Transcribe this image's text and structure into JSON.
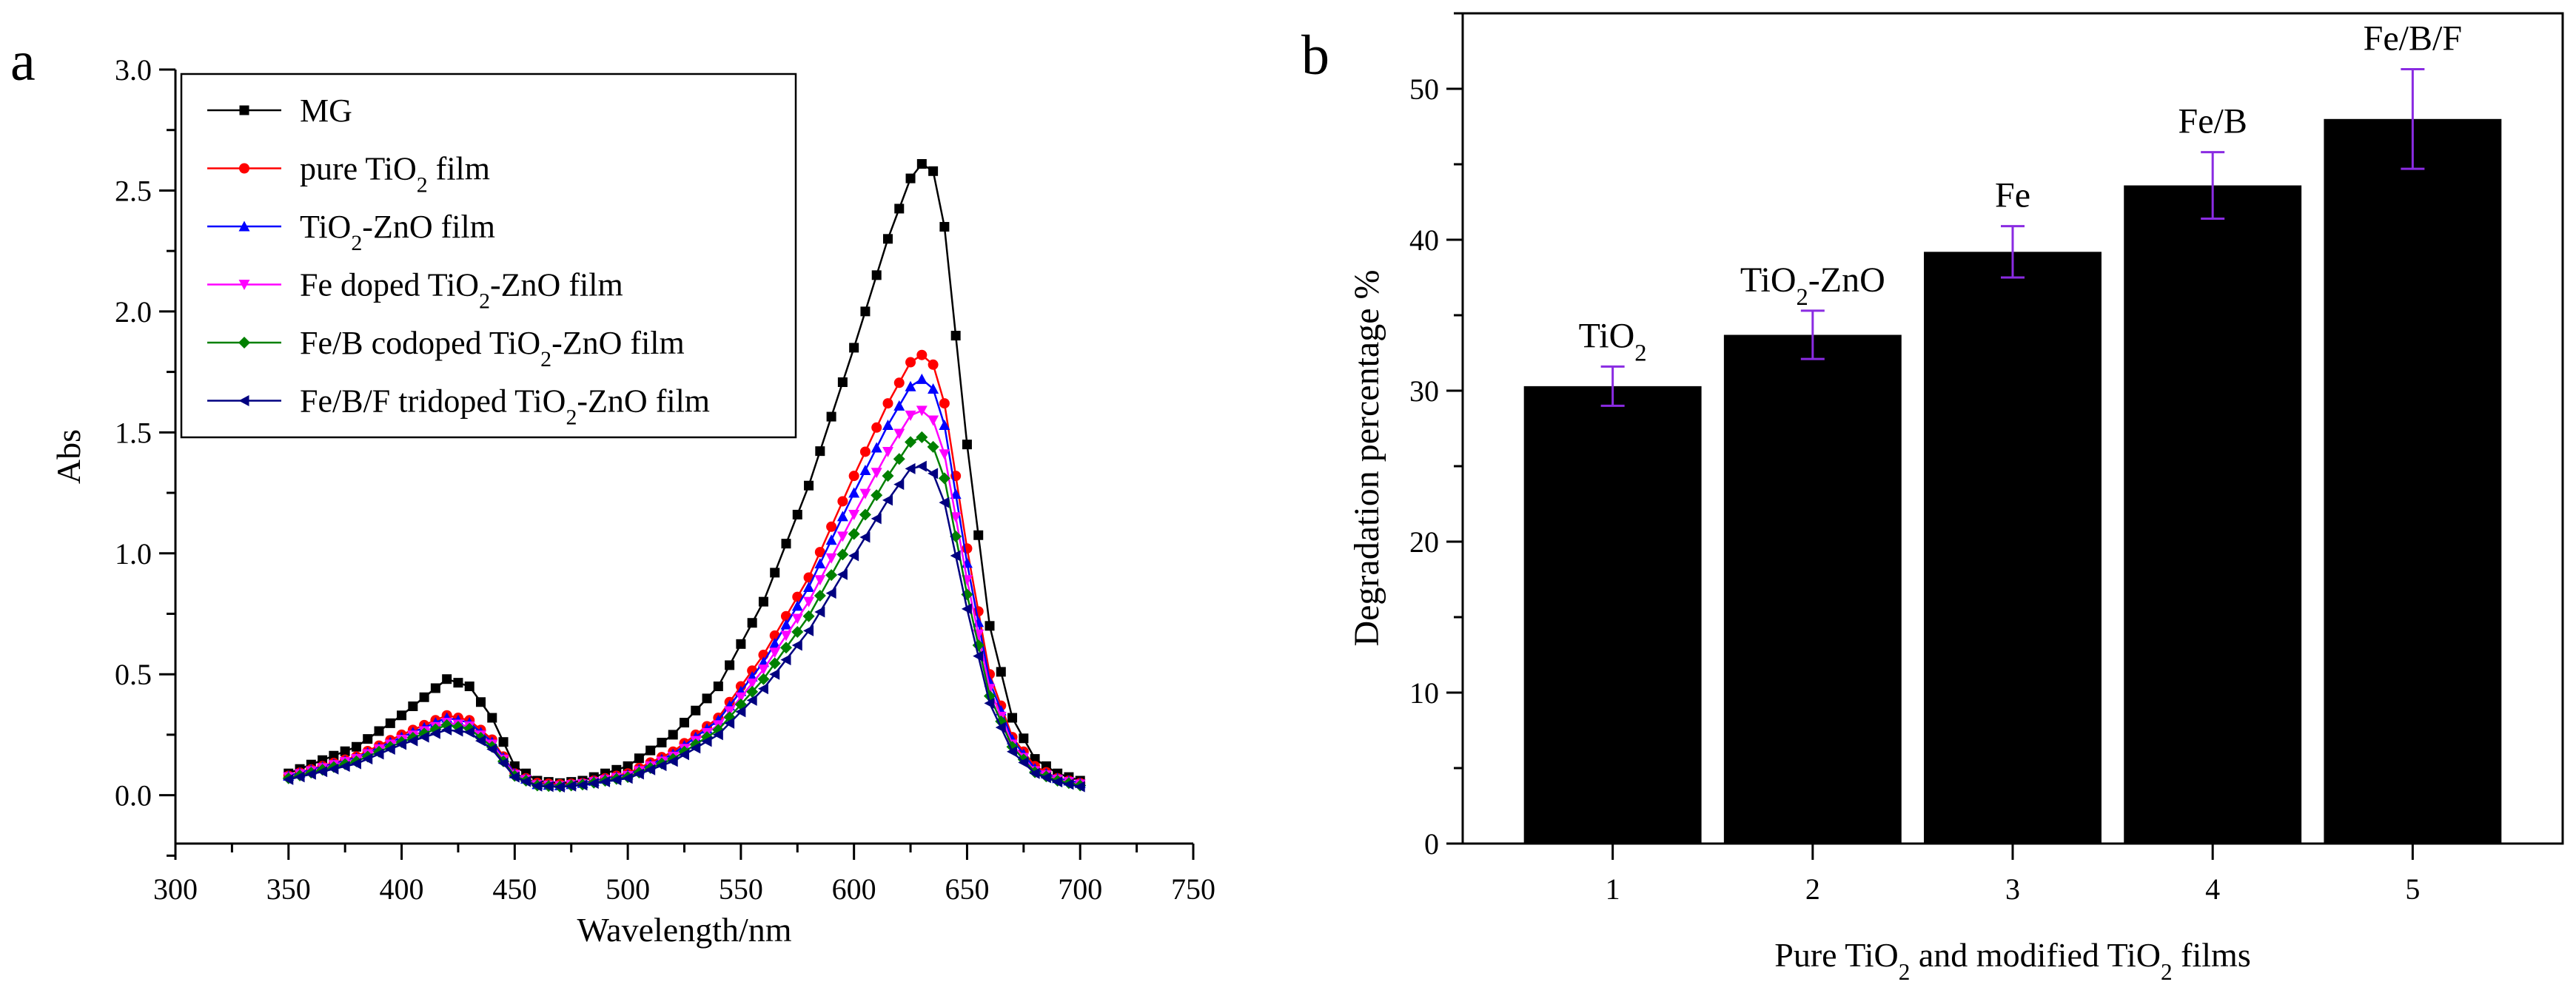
{
  "panel_labels": {
    "a": "a",
    "b": "b"
  },
  "colors": {
    "axis": "#000000",
    "bar_fill": "#000000",
    "error_bar": "#8a2be2",
    "series": [
      "#000000",
      "#ff0000",
      "#0000ff",
      "#ff00ff",
      "#008000",
      "#000080"
    ]
  },
  "chart_data": [
    {
      "type": "line",
      "panel": "a",
      "title": "",
      "xlabel": "Wavelength/nm",
      "ylabel": "Abs",
      "xlim": [
        300,
        750
      ],
      "ylim": [
        -0.2,
        3.0
      ],
      "xticks": [
        300,
        350,
        400,
        450,
        500,
        550,
        600,
        650,
        700,
        750
      ],
      "yticks": [
        0.0,
        0.5,
        1.0,
        1.5,
        2.0,
        2.5,
        3.0
      ],
      "xtick_labels": [
        "300",
        "350",
        "400",
        "450",
        "500",
        "550",
        "600",
        "650",
        "700",
        "750"
      ],
      "ytick_labels": [
        "0.0",
        "0.5",
        "1.0",
        "1.5",
        "2.0",
        "2.5",
        "3.0"
      ],
      "legend_position": "top-left",
      "anchor_x": [
        350,
        380,
        400,
        420,
        430,
        440,
        450,
        460,
        470,
        480,
        500,
        520,
        540,
        560,
        580,
        600,
        615,
        625,
        630,
        635,
        640,
        650,
        660,
        670,
        680,
        690,
        700
      ],
      "sample_x": {
        "start": 350,
        "end": 700,
        "step": 5
      },
      "series": [
        {
          "name": "MG",
          "sub": "",
          "tail": "",
          "marker": "square",
          "values": [
            0.09,
            0.2,
            0.33,
            0.48,
            0.45,
            0.32,
            0.12,
            0.06,
            0.05,
            0.06,
            0.12,
            0.25,
            0.45,
            0.8,
            1.28,
            1.85,
            2.3,
            2.55,
            2.61,
            2.58,
            2.35,
            1.45,
            0.7,
            0.32,
            0.15,
            0.09,
            0.06
          ]
        },
        {
          "name": "pure TiO",
          "sub": "2",
          "tail": " film",
          "marker": "circle",
          "values": [
            0.08,
            0.16,
            0.25,
            0.33,
            0.31,
            0.23,
            0.09,
            0.05,
            0.045,
            0.05,
            0.09,
            0.18,
            0.32,
            0.58,
            0.9,
            1.32,
            1.62,
            1.79,
            1.82,
            1.78,
            1.62,
            1.02,
            0.5,
            0.24,
            0.12,
            0.07,
            0.05
          ]
        },
        {
          "name": "TiO",
          "sub": "2",
          "tail": "-ZnO film",
          "marker": "triangle-up",
          "values": [
            0.08,
            0.155,
            0.24,
            0.32,
            0.3,
            0.22,
            0.09,
            0.045,
            0.04,
            0.05,
            0.085,
            0.17,
            0.31,
            0.55,
            0.86,
            1.25,
            1.53,
            1.69,
            1.72,
            1.68,
            1.53,
            0.96,
            0.47,
            0.23,
            0.11,
            0.07,
            0.05
          ]
        },
        {
          "name": "Fe doped TiO",
          "sub": "2",
          "tail": "-ZnO film",
          "marker": "triangle-down",
          "values": [
            0.075,
            0.15,
            0.23,
            0.3,
            0.285,
            0.21,
            0.085,
            0.042,
            0.038,
            0.046,
            0.08,
            0.16,
            0.29,
            0.52,
            0.8,
            1.16,
            1.42,
            1.57,
            1.59,
            1.55,
            1.41,
            0.89,
            0.44,
            0.21,
            0.1,
            0.065,
            0.045
          ]
        },
        {
          "name": "Fe/B codoped TiO",
          "sub": "2",
          "tail": "-ZnO film",
          "marker": "diamond",
          "values": [
            0.07,
            0.14,
            0.22,
            0.29,
            0.275,
            0.2,
            0.08,
            0.04,
            0.036,
            0.044,
            0.075,
            0.15,
            0.27,
            0.48,
            0.74,
            1.08,
            1.32,
            1.46,
            1.48,
            1.44,
            1.31,
            0.83,
            0.41,
            0.2,
            0.095,
            0.06,
            0.04
          ]
        },
        {
          "name": "Fe/B/F tridoped TiO",
          "sub": "2",
          "tail": "-ZnO film",
          "marker": "triangle-left",
          "values": [
            0.065,
            0.13,
            0.21,
            0.27,
            0.26,
            0.19,
            0.075,
            0.038,
            0.034,
            0.042,
            0.07,
            0.14,
            0.25,
            0.44,
            0.68,
            0.99,
            1.22,
            1.35,
            1.36,
            1.33,
            1.21,
            0.77,
            0.38,
            0.18,
            0.09,
            0.055,
            0.035
          ]
        }
      ]
    },
    {
      "type": "bar",
      "panel": "b",
      "title": "",
      "xlabel_parts": [
        "Pure TiO",
        "2",
        " and modified TiO",
        "2",
        " films"
      ],
      "ylabel": "Degradation percentage %",
      "ylim": [
        0,
        55
      ],
      "yticks": [
        0,
        10,
        20,
        30,
        40,
        50
      ],
      "ytick_labels": [
        "0",
        "10",
        "20",
        "30",
        "40",
        "50"
      ],
      "categories": [
        "1",
        "2",
        "3",
        "4",
        "5"
      ],
      "values": [
        30.3,
        33.7,
        39.2,
        43.6,
        48.0
      ],
      "errors": [
        1.3,
        1.6,
        1.7,
        2.2,
        3.3
      ],
      "bar_labels": [
        {
          "main": "TiO",
          "sub": "2",
          "tail": ""
        },
        {
          "main": "TiO",
          "sub": "2",
          "tail": "-ZnO"
        },
        {
          "main": "Fe",
          "sub": "",
          "tail": ""
        },
        {
          "main": "Fe/B",
          "sub": "",
          "tail": ""
        },
        {
          "main": "Fe/B/F",
          "sub": "",
          "tail": ""
        }
      ]
    }
  ]
}
